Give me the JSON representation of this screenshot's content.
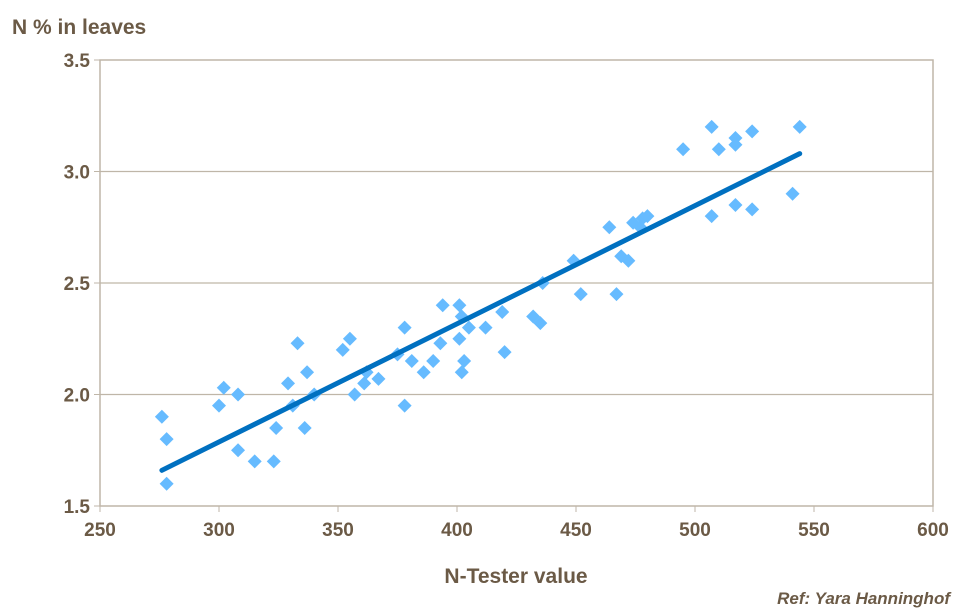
{
  "chart_data": {
    "type": "scatter",
    "title": "",
    "xlabel": "N-Tester value",
    "ylabel": "N % in leaves",
    "xlim": [
      250,
      600
    ],
    "ylim": [
      1.5,
      3.5
    ],
    "xticks": [
      "250",
      "300",
      "350",
      "400",
      "450",
      "500",
      "550",
      "600"
    ],
    "yticks": [
      "1.5",
      "2.0",
      "2.5",
      "3.0",
      "3.5"
    ],
    "grid": "horizontal",
    "annotation": "Ref: Yara Hanninghof",
    "colors": {
      "points": "#66bbff",
      "trend": "#0070c0",
      "axis_text": "#6b5a46",
      "frame": "#bfb6a8"
    },
    "points": [
      [
        276,
        1.9
      ],
      [
        278,
        1.8
      ],
      [
        278,
        1.6
      ],
      [
        300,
        1.95
      ],
      [
        302,
        2.03
      ],
      [
        308,
        2.0
      ],
      [
        308,
        1.75
      ],
      [
        315,
        1.7
      ],
      [
        323,
        1.7
      ],
      [
        324,
        1.85
      ],
      [
        329,
        2.05
      ],
      [
        331,
        1.95
      ],
      [
        333,
        2.23
      ],
      [
        336,
        1.85
      ],
      [
        337,
        2.1
      ],
      [
        340,
        2.0
      ],
      [
        352,
        2.2
      ],
      [
        355,
        2.25
      ],
      [
        357,
        2.0
      ],
      [
        361,
        2.05
      ],
      [
        362,
        2.1
      ],
      [
        367,
        2.07
      ],
      [
        375,
        2.18
      ],
      [
        378,
        2.3
      ],
      [
        378,
        1.95
      ],
      [
        381,
        2.15
      ],
      [
        386,
        2.1
      ],
      [
        390,
        2.15
      ],
      [
        393,
        2.23
      ],
      [
        394,
        2.4
      ],
      [
        401,
        2.4
      ],
      [
        401,
        2.25
      ],
      [
        402,
        2.35
      ],
      [
        402,
        2.1
      ],
      [
        403,
        2.15
      ],
      [
        405,
        2.3
      ],
      [
        412,
        2.3
      ],
      [
        419,
        2.37
      ],
      [
        420,
        2.19
      ],
      [
        432,
        2.35
      ],
      [
        435,
        2.32
      ],
      [
        436,
        2.5
      ],
      [
        449,
        2.6
      ],
      [
        452,
        2.45
      ],
      [
        464,
        2.75
      ],
      [
        467,
        2.45
      ],
      [
        469,
        2.62
      ],
      [
        472,
        2.6
      ],
      [
        474,
        2.77
      ],
      [
        477,
        2.75
      ],
      [
        478,
        2.79
      ],
      [
        480,
        2.8
      ],
      [
        495,
        3.1
      ],
      [
        507,
        3.2
      ],
      [
        507,
        2.8
      ],
      [
        510,
        3.1
      ],
      [
        517,
        3.15
      ],
      [
        517,
        3.12
      ],
      [
        517,
        2.85
      ],
      [
        524,
        3.18
      ],
      [
        524,
        2.83
      ],
      [
        541,
        2.9
      ],
      [
        544,
        3.2
      ]
    ],
    "trendline": {
      "x": [
        276,
        544
      ],
      "y": [
        1.66,
        3.08
      ]
    }
  }
}
